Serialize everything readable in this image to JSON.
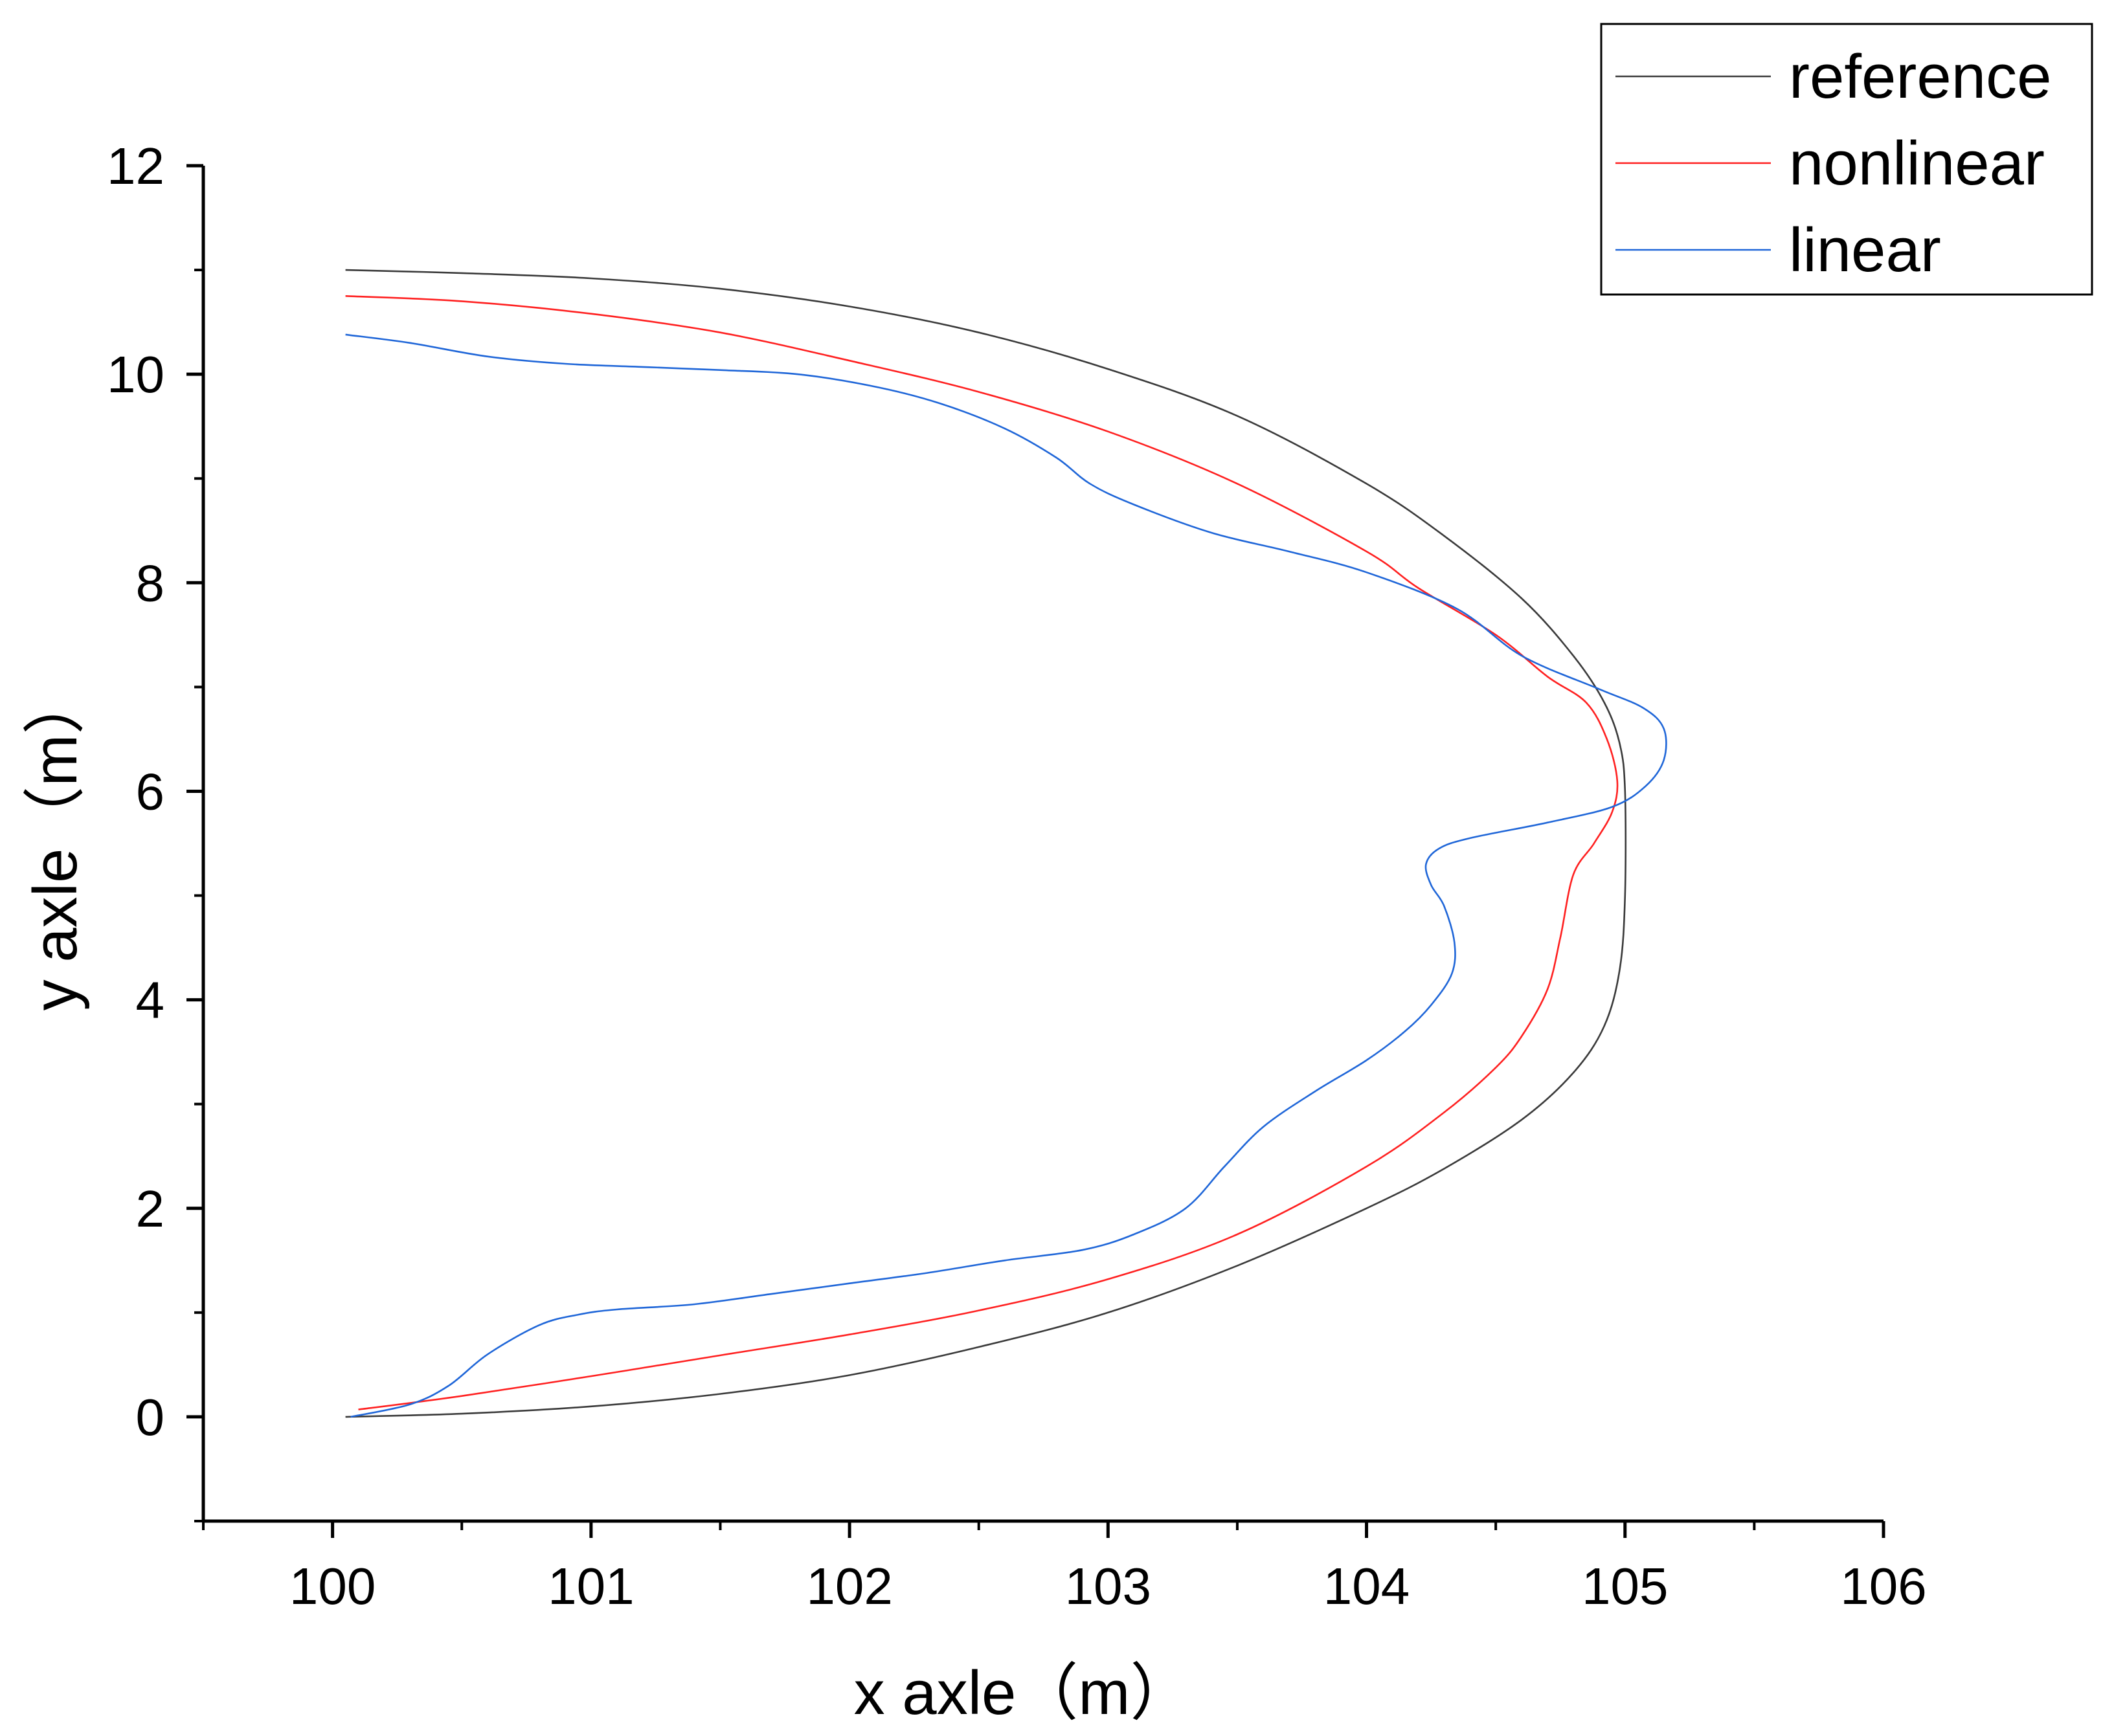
{
  "chart_data": {
    "type": "line",
    "xlabel": "x axle（m）",
    "ylabel": "y axle（m）",
    "xlim": [
      99.5,
      106
    ],
    "ylim": [
      -1,
      12
    ],
    "x_ticks": [
      "100",
      "101",
      "102",
      "103",
      "104",
      "105",
      "106"
    ],
    "y_ticks": [
      "0",
      "2",
      "4",
      "6",
      "8",
      "10",
      "12"
    ],
    "grid": false,
    "legend_position": "top-right",
    "series": [
      {
        "name": "reference",
        "color": "#3a3a3a",
        "x": [
          100.05,
          100.5,
          101.0,
          101.5,
          102.0,
          102.5,
          103.0,
          103.5,
          104.0,
          104.3,
          104.6,
          104.8,
          104.92,
          104.98,
          105.0,
          105.0,
          104.98,
          104.92,
          104.8,
          104.6,
          104.3,
          104.0,
          103.5,
          103.0,
          102.5,
          102.0,
          101.5,
          101.0,
          100.5,
          100.05
        ],
        "y": [
          0.0,
          0.03,
          0.1,
          0.22,
          0.4,
          0.67,
          1.0,
          1.45,
          2.0,
          2.38,
          2.85,
          3.3,
          3.75,
          4.3,
          5.0,
          6.0,
          6.45,
          6.85,
          7.3,
          7.85,
          8.45,
          8.95,
          9.6,
          10.05,
          10.4,
          10.65,
          10.82,
          10.92,
          10.97,
          11.0
        ]
      },
      {
        "name": "nonlinear",
        "color": "#ff2020",
        "x": [
          100.1,
          100.5,
          101.0,
          101.5,
          102.0,
          102.5,
          103.0,
          103.5,
          104.0,
          104.3,
          104.5,
          104.6,
          104.7,
          104.75,
          104.8,
          104.88,
          104.95,
          104.97,
          104.93,
          104.85,
          104.7,
          104.5,
          104.2,
          104.0,
          103.5,
          103.0,
          102.5,
          102.0,
          101.5,
          101.0,
          100.5,
          100.05
        ],
        "y": [
          0.07,
          0.2,
          0.39,
          0.59,
          0.79,
          1.02,
          1.32,
          1.75,
          2.4,
          2.92,
          3.35,
          3.65,
          4.1,
          4.6,
          5.2,
          5.5,
          5.8,
          6.1,
          6.5,
          6.85,
          7.1,
          7.5,
          7.95,
          8.3,
          8.95,
          9.45,
          9.83,
          10.13,
          10.4,
          10.58,
          10.7,
          10.75
        ]
      },
      {
        "name": "linear",
        "color": "#1f66d8",
        "x": [
          100.07,
          100.3,
          100.45,
          100.6,
          100.8,
          100.95,
          101.1,
          101.4,
          101.7,
          102.0,
          102.3,
          102.6,
          102.9,
          103.1,
          103.3,
          103.45,
          103.6,
          103.8,
          104.0,
          104.15,
          104.25,
          104.33,
          104.34,
          104.3,
          104.25,
          104.23,
          104.28,
          104.4,
          104.7,
          104.95,
          105.08,
          105.15,
          105.15,
          105.07,
          104.9,
          104.6,
          104.35,
          104.0,
          103.7,
          103.4,
          103.1,
          102.93,
          102.8,
          102.6,
          102.35,
          102.1,
          101.8,
          101.5,
          101.2,
          100.9,
          100.6,
          100.3,
          100.05
        ],
        "y": [
          0.0,
          0.12,
          0.3,
          0.6,
          0.88,
          0.98,
          1.03,
          1.08,
          1.18,
          1.28,
          1.38,
          1.5,
          1.6,
          1.75,
          2.0,
          2.4,
          2.78,
          3.12,
          3.42,
          3.7,
          3.95,
          4.25,
          4.55,
          4.9,
          5.1,
          5.3,
          5.45,
          5.55,
          5.7,
          5.85,
          6.05,
          6.3,
          6.6,
          6.8,
          6.98,
          7.3,
          7.75,
          8.1,
          8.3,
          8.48,
          8.75,
          8.95,
          9.2,
          9.48,
          9.72,
          9.88,
          10.0,
          10.04,
          10.07,
          10.1,
          10.17,
          10.3,
          10.38
        ]
      }
    ]
  }
}
